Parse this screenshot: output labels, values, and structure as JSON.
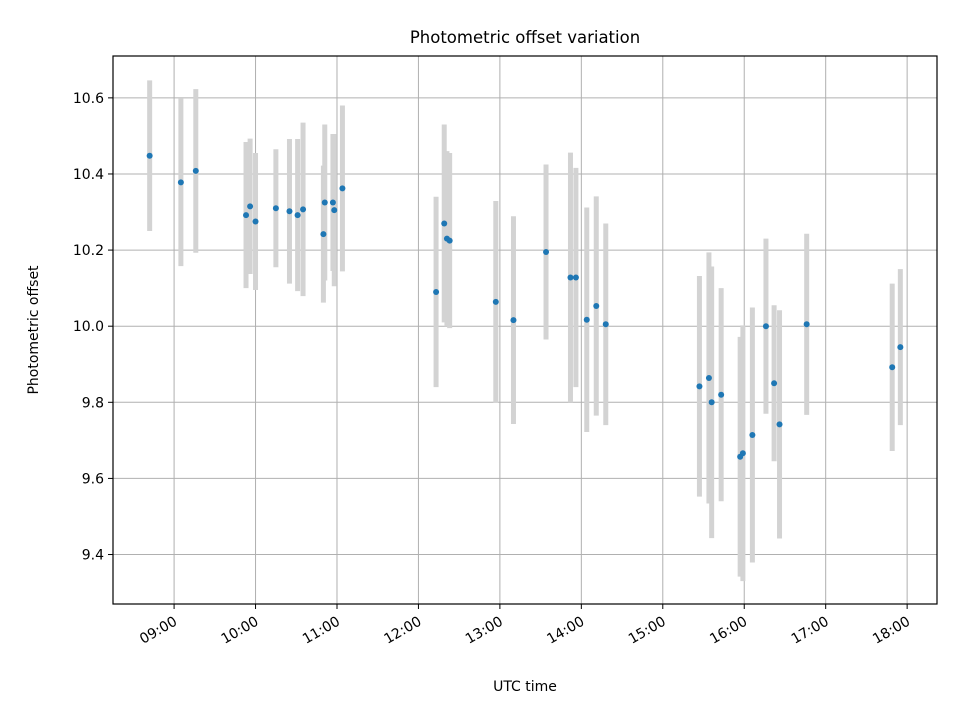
{
  "chart_data": {
    "type": "scatter",
    "title": "Photometric offset variation",
    "xlabel": "UTC time",
    "ylabel": "Photometric offset",
    "x_unit": "UTC time (HH:MM)",
    "xlim": [
      "08:15",
      "18:22"
    ],
    "ylim": [
      9.27,
      10.71
    ],
    "x_ticks": [
      "09:00",
      "10:00",
      "11:00",
      "12:00",
      "13:00",
      "14:00",
      "15:00",
      "16:00",
      "17:00",
      "18:00"
    ],
    "y_ticks": [
      "9.4",
      "9.6",
      "9.8",
      "10.0",
      "10.2",
      "10.4",
      "10.6"
    ],
    "grid": true,
    "colors": {
      "point": "#1f77b4",
      "error_bar": "#d3d3d3",
      "grid": "#b0b0b0"
    },
    "points": [
      {
        "t": "08:42",
        "y": 10.448,
        "err": 0.198
      },
      {
        "t": "09:05",
        "y": 10.378,
        "err": 0.22
      },
      {
        "t": "09:16",
        "y": 10.408,
        "err": 0.215
      },
      {
        "t": "09:53",
        "y": 10.292,
        "err": 0.192
      },
      {
        "t": "09:56",
        "y": 10.315,
        "err": 0.178
      },
      {
        "t": "10:00",
        "y": 10.275,
        "err": 0.18
      },
      {
        "t": "10:15",
        "y": 10.31,
        "err": 0.155
      },
      {
        "t": "10:25",
        "y": 10.302,
        "err": 0.19
      },
      {
        "t": "10:31",
        "y": 10.292,
        "err": 0.2
      },
      {
        "t": "10:35",
        "y": 10.307,
        "err": 0.228
      },
      {
        "t": "10:50",
        "y": 10.242,
        "err": 0.18
      },
      {
        "t": "10:51",
        "y": 10.325,
        "err": 0.205
      },
      {
        "t": "10:57",
        "y": 10.325,
        "err": 0.18
      },
      {
        "t": "10:58",
        "y": 10.305,
        "err": 0.2
      },
      {
        "t": "11:04",
        "y": 10.362,
        "err": 0.218
      },
      {
        "t": "12:13",
        "y": 10.09,
        "err": 0.25
      },
      {
        "t": "12:19",
        "y": 10.27,
        "err": 0.26
      },
      {
        "t": "12:21",
        "y": 10.23,
        "err": 0.23
      },
      {
        "t": "12:23",
        "y": 10.225,
        "err": 0.23
      },
      {
        "t": "12:57",
        "y": 10.064,
        "err": 0.265
      },
      {
        "t": "13:10",
        "y": 10.016,
        "err": 0.273
      },
      {
        "t": "13:34",
        "y": 10.195,
        "err": 0.23
      },
      {
        "t": "13:52",
        "y": 10.128,
        "err": 0.328
      },
      {
        "t": "13:56",
        "y": 10.128,
        "err": 0.288
      },
      {
        "t": "14:04",
        "y": 10.017,
        "err": 0.295
      },
      {
        "t": "14:11",
        "y": 10.053,
        "err": 0.288
      },
      {
        "t": "14:18",
        "y": 10.005,
        "err": 0.265
      },
      {
        "t": "15:27",
        "y": 9.842,
        "err": 0.29
      },
      {
        "t": "15:34",
        "y": 9.864,
        "err": 0.33
      },
      {
        "t": "15:36",
        "y": 9.8,
        "err": 0.357
      },
      {
        "t": "15:43",
        "y": 9.82,
        "err": 0.28
      },
      {
        "t": "15:57",
        "y": 9.657,
        "err": 0.315
      },
      {
        "t": "15:59",
        "y": 9.666,
        "err": 0.336
      },
      {
        "t": "16:06",
        "y": 9.714,
        "err": 0.335
      },
      {
        "t": "16:16",
        "y": 10.0,
        "err": 0.23
      },
      {
        "t": "16:22",
        "y": 9.85,
        "err": 0.205
      },
      {
        "t": "16:26",
        "y": 9.742,
        "err": 0.3
      },
      {
        "t": "16:46",
        "y": 10.005,
        "err": 0.238
      },
      {
        "t": "17:49",
        "y": 9.892,
        "err": 0.22
      },
      {
        "t": "17:55",
        "y": 9.945,
        "err": 0.205
      }
    ]
  }
}
